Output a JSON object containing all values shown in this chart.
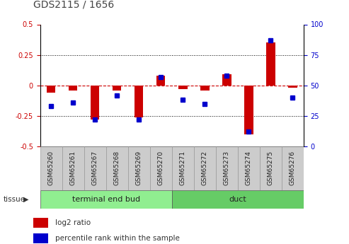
{
  "title": "GDS2115 / 1656",
  "samples": [
    "GSM65260",
    "GSM65261",
    "GSM65267",
    "GSM65268",
    "GSM65269",
    "GSM65270",
    "GSM65271",
    "GSM65272",
    "GSM65273",
    "GSM65274",
    "GSM65275",
    "GSM65276"
  ],
  "log2_ratio": [
    -0.06,
    -0.04,
    -0.28,
    -0.04,
    -0.26,
    0.08,
    -0.03,
    -0.04,
    0.09,
    -0.4,
    0.35,
    -0.02
  ],
  "percentile_rank": [
    33,
    36,
    22,
    42,
    22,
    57,
    38,
    35,
    58,
    12,
    87,
    40
  ],
  "groups": [
    {
      "label": "terminal end bud",
      "start": 0,
      "end": 6,
      "color": "#90EE90"
    },
    {
      "label": "duct",
      "start": 6,
      "end": 12,
      "color": "#66CC66"
    }
  ],
  "ylim_left": [
    -0.5,
    0.5
  ],
  "ylim_right": [
    0,
    100
  ],
  "yticks_left": [
    -0.5,
    -0.25,
    0.0,
    0.25,
    0.5
  ],
  "yticks_right": [
    0,
    25,
    50,
    75,
    100
  ],
  "bar_color_red": "#CC0000",
  "bar_color_blue": "#0000CC",
  "dotted_line_color": "#000000",
  "zero_line_color": "#CC0000",
  "background_color": "#ffffff",
  "plot_bg_color": "#ffffff",
  "legend_red_label": "log2 ratio",
  "legend_blue_label": "percentile rank within the sample",
  "tissue_label": "tissue",
  "bar_width": 0.4,
  "percentile_marker_size": 5,
  "title_fontsize": 10,
  "tick_fontsize": 7,
  "label_fontsize": 6.5,
  "group_fontsize": 8,
  "legend_fontsize": 7.5
}
